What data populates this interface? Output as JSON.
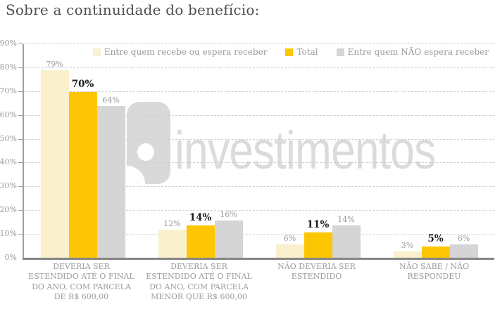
{
  "title": "Sobre a continuidade do benefício:",
  "watermark": {
    "text": "investimentos",
    "logo": "rounded-g-mark"
  },
  "colors": {
    "cream": "#FBF0CD",
    "gold": "#FDC605",
    "gray": "#D5D5D5",
    "grid_line": "#CFCFCF",
    "axis_line": "#8C8C8C",
    "text_gray": "#9B9B9B",
    "value_emphasis": "#1A1A1A",
    "title_text": "#4F4F4F",
    "watermark_gray": "#DBDBDB"
  },
  "chart_data": {
    "type": "bar",
    "title": "Sobre a continuidade do benefício:",
    "categories": [
      "DEVERIA SER ESTENDIDO ATÉ O FINAL DO ANO, COM PARCELA DE R$ 600,00",
      "DEVERIA SER ESTENDIDO ATÉ O FINAL DO ANO, COM PARCELA MENOR QUE R$ 600,00",
      "NÃO DEVERIA SER ESTENDIDO",
      "NÃO SABE / NÃO RESPONDEU"
    ],
    "series": [
      {
        "name": "Entre quem recebe ou espera receber",
        "color_key": "cream",
        "emphasis": false,
        "values": [
          79,
          12,
          6,
          3
        ]
      },
      {
        "name": "Total",
        "color_key": "gold",
        "emphasis": true,
        "values": [
          70,
          14,
          11,
          5
        ]
      },
      {
        "name": "Entre quem NÃO espera receber",
        "color_key": "gray",
        "emphasis": false,
        "values": [
          64,
          16,
          14,
          6
        ]
      }
    ],
    "value_suffix": "%",
    "ylim": [
      0,
      90
    ],
    "ytick_step": 10,
    "ytick_labels": [
      "0%",
      "10%",
      "20%",
      "30%",
      "40%",
      "50%",
      "60%",
      "70%",
      "80%",
      "90%"
    ],
    "grid": "horizontal-dashed",
    "legend_position": "top"
  }
}
